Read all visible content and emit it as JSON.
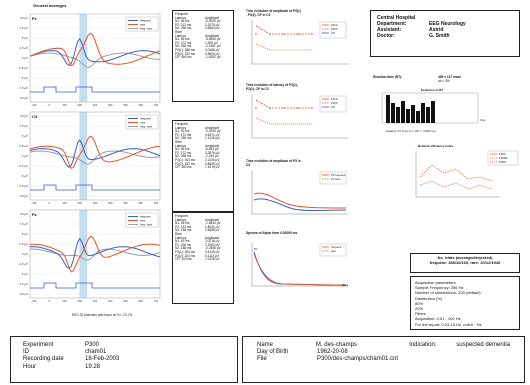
{
  "left_title": "General averages",
  "bottom_caption": "EEG 32 channels with focus on Fz, C3, Pz",
  "erp_panels": [
    {
      "channel": "Fz",
      "legend": [
        "frequent",
        "rare",
        "freq.-rare"
      ],
      "stats_rows": [
        [
          "Frequent",
          ""
        ],
        [
          "Latency",
          "Amplitude"
        ],
        [
          "N1: 96 ms",
          "-5.2625 µV"
        ],
        [
          "P2: 212 ms",
          "2.2076 µV"
        ],
        [
          "N2: 256 ms",
          "2.6664 µV"
        ],
        [
          "",
          ""
        ],
        [
          "Rare",
          ""
        ],
        [
          "Latency",
          "Amplitude"
        ],
        [
          "N1: 96 ms",
          "-8.4655 µV"
        ],
        [
          "P2: 172 ms",
          "1.309 µV"
        ],
        [
          "N2: 260 ms",
          "-2.0361 µV"
        ],
        [
          "P3(1): 288 ms",
          "0.0466 µV"
        ],
        [
          "P3(2): 332 ms",
          "0.5500 µV"
        ],
        [
          "CP: 460 ms",
          "-1.6252 µV"
        ]
      ]
    },
    {
      "channel": "C3",
      "legend": [
        "frequent",
        "rare",
        "freq.-rare"
      ],
      "stats_rows": [
        [
          "Frequent",
          ""
        ],
        [
          "Latency",
          "Amplitude"
        ],
        [
          "N1: 92 ms",
          "-0.0206 µV"
        ],
        [
          "P2: 172 ms",
          "0.8471 µV"
        ],
        [
          "N2: 256 ms",
          "1.1226 µV"
        ],
        [
          "",
          ""
        ],
        [
          "Rare",
          ""
        ],
        [
          "Latency",
          "Amplitude"
        ],
        [
          "N1: 96 ms",
          "-6.263 µV"
        ],
        [
          "P2: 172 ms",
          "2.2876 µV"
        ],
        [
          "N2: 268 ms",
          "-2.044 µV"
        ],
        [
          "P3(1): 304 ms",
          "2.1106 µV"
        ],
        [
          "P3(2): 332 ms",
          "2.8509 µV"
        ],
        [
          "CP: 360 ms",
          "7.1019 µV"
        ]
      ]
    },
    {
      "channel": "Pz",
      "legend": [
        "frequent",
        "rare",
        "freq.-rare"
      ],
      "stats_rows": [
        [
          "Frequent",
          ""
        ],
        [
          "Latency",
          "Amplitude"
        ],
        [
          "N1: 96 ms",
          "-2.4834 µV"
        ],
        [
          "P2: 212 ms",
          "1.8031 µV"
        ],
        [
          "N2: 156 ms",
          "1.6658 µV"
        ],
        [
          "",
          ""
        ],
        [
          "Rare",
          ""
        ],
        [
          "Latency",
          "Amplitude"
        ],
        [
          "N1: 92 ms",
          "2.0218 µV"
        ],
        [
          "P2: 208 ms",
          "2.1900 µV"
        ],
        [
          "N2: 188 ms",
          "-0.0356 µV"
        ],
        [
          "P3(1): 304 ms",
          "0.4105 µV"
        ],
        [
          "P3(2): 324 ms",
          "0.1113 µV"
        ],
        [
          "CP: 300 ms",
          "7.0208 µV"
        ]
      ]
    }
  ],
  "y_ticks": [
    "10 µV",
    "7.5 µV",
    "5 µV",
    "2.5 µV",
    "0 µV",
    "-2.5 µV",
    "-5 µV",
    "-7.5 µV",
    "-10 µV"
  ],
  "x_ticks": [
    "-100",
    "0",
    "100",
    "200",
    "300",
    "400",
    "500",
    "600",
    "700"
  ],
  "time_charts": {
    "amplitude_title": "Time evolution of amplitude of P3(1), P3(2), CP in C3",
    "amplitude_legend": [
      "P3(1)",
      "P3(2)",
      "CP"
    ],
    "latency_title": "Time evolution of latency of P3(1), P3(2), CP in C3",
    "latency_legend": [
      "P3(1)",
      "P3(2)",
      "CP"
    ],
    "p3_title": "Time evolution of amplitude of P3 in C3",
    "p3_legend": [
      "P3 frequent",
      "P3 rare"
    ],
    "spectral_title": "Spectra of Alpha from 0-30000 ms",
    "spectral_sub": "Pz",
    "spectral_legend": [
      "frequent",
      "rare"
    ],
    "spectral_label": "[Hz]"
  },
  "hospital": {
    "rows": [
      [
        "Central Hospital",
        ""
      ],
      [
        "Department:",
        "EEG Neurology"
      ],
      [
        "Assistant:",
        "Astrid"
      ],
      [
        "Doctor:",
        "G. Smith"
      ]
    ]
  },
  "reaction": {
    "title": "Reaction time (RT):",
    "mean": "459 ± 137 msec",
    "sd": "sd = 3%",
    "hist_title": "Evolution of RT",
    "hist_xlabel": "Freq",
    "negative_note": "Negative: RT errors (n = 190, 1 = 8000 ms)",
    "trend_title": "Network efficiency index",
    "trend_legend": [
      "P300",
      "P300R",
      "P3DF"
    ]
  },
  "trials": {
    "line1": "No. trials (averaged/rejected)",
    "line2": "frequent: 158/10/160, rare: 20/12/1940"
  },
  "acquisition": {
    "lines": [
      "Acquisition parameters",
      "Sample Frequency: 256 Hz",
      "Number of stimulations: 200 (default)",
      "Distribution (%)",
      "  80%",
      "  20%",
      "Filters",
      "Acquisition: 0.01 - 100 Hz",
      "For the report: 0.03-15 Hz, notch - Hz"
    ]
  },
  "experiment": {
    "rows": [
      [
        "Experiment",
        "P300"
      ],
      [
        "ID",
        "cham01"
      ],
      [
        "Recording date",
        "18-Feb-2003"
      ],
      [
        "Hour",
        "19:28"
      ]
    ]
  },
  "patient": {
    "rows": [
      [
        "Name",
        "M. des-champs"
      ],
      [
        "Day of Birth",
        "1962-20-08"
      ],
      [
        "File",
        "P300/des-champs/cham01.cnt"
      ]
    ],
    "indication_label": "Indication:",
    "indication_value": "suspected dementia"
  },
  "colors": {
    "frequent": "#3a5fcd",
    "rare": "#e8552b",
    "diff": "#9aa0a6",
    "highlight": "#8fc3e6"
  }
}
